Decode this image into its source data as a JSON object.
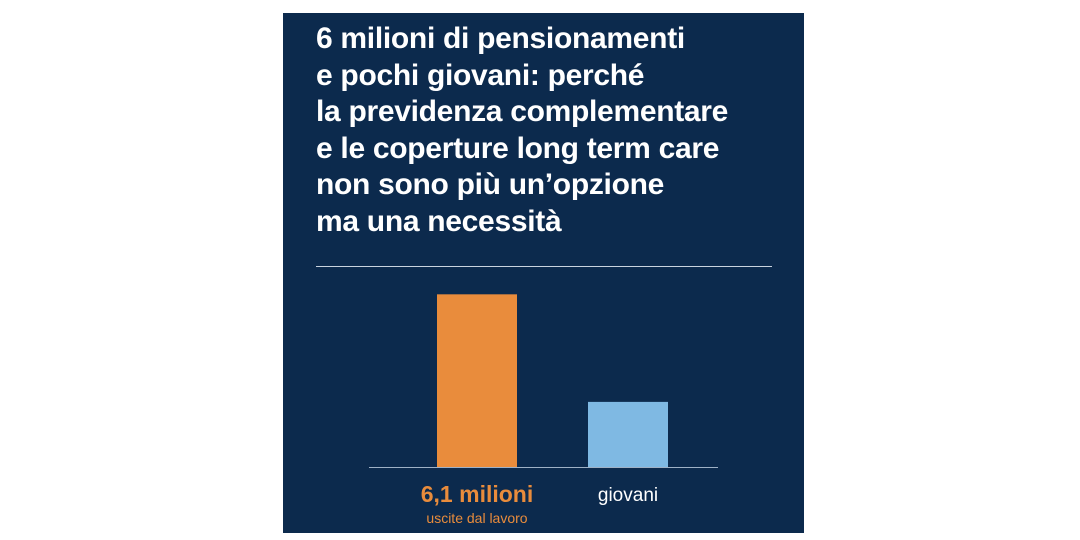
{
  "colors": {
    "background": "#0c2a4d",
    "headline": "#ffffff",
    "divider": "#c9d3df",
    "axis": "#9fb1c6",
    "bar_retirements": "#e98c3c",
    "bar_young": "#7fb9e3",
    "label_accent": "#e98c3c",
    "label_plain": "#ffffff",
    "page": "#ffffff"
  },
  "headline": {
    "lines": [
      "6 milioni di pensionamenti",
      "e pochi giovani: perché",
      "la previdenza complementare",
      "e le coperture long term care",
      "non sono più un’opzione",
      "ma una necessità"
    ]
  },
  "chart_data": {
    "type": "bar",
    "title": "",
    "categories": [
      "uscite dal lavoro",
      "giovani"
    ],
    "values": [
      6.1,
      2.3
    ],
    "value_labels": [
      "6,1 milioni",
      ""
    ],
    "category_labels": [
      "uscite dal lavoro",
      "giovani"
    ],
    "unit": "milioni",
    "ylim": [
      0,
      6.5
    ],
    "grid": false,
    "legend": "none",
    "bar_colors": [
      "#e98c3c",
      "#7fb9e3"
    ]
  }
}
